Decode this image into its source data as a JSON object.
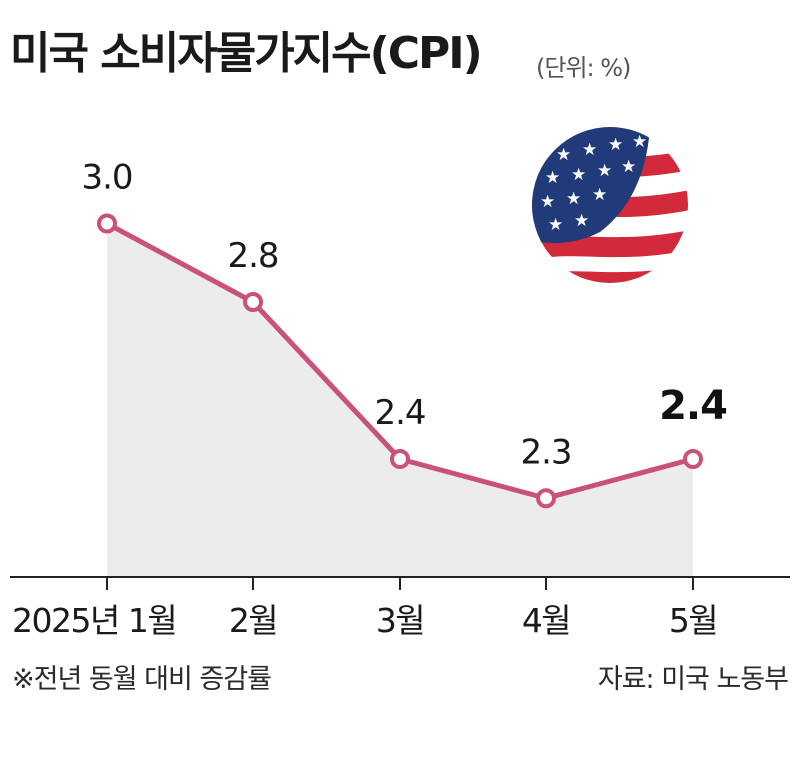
{
  "title": "미국 소비자물가지수(CPI)",
  "unit": "(단위: %)",
  "footnote": "※전년 동월 대비 증감률",
  "source": "자료: 미국 노동부",
  "colors": {
    "line": "#c9517a",
    "area": "#ececec",
    "axis": "#222222",
    "highlight_label": "#111111"
  },
  "icon": "us-flag-icon",
  "chart_data": {
    "type": "area",
    "title": "미국 소비자물가지수(CPI)",
    "unit": "%",
    "categories": [
      "2025년 1월",
      "2월",
      "3월",
      "4월",
      "5월"
    ],
    "series": [
      {
        "values": [
          3.0,
          2.8,
          2.4,
          2.3,
          2.4
        ]
      }
    ],
    "data_labels": [
      "3.0",
      "2.8",
      "2.4",
      "2.3",
      "2.4"
    ],
    "highlight_last": true,
    "grid": false,
    "legend": "none"
  }
}
